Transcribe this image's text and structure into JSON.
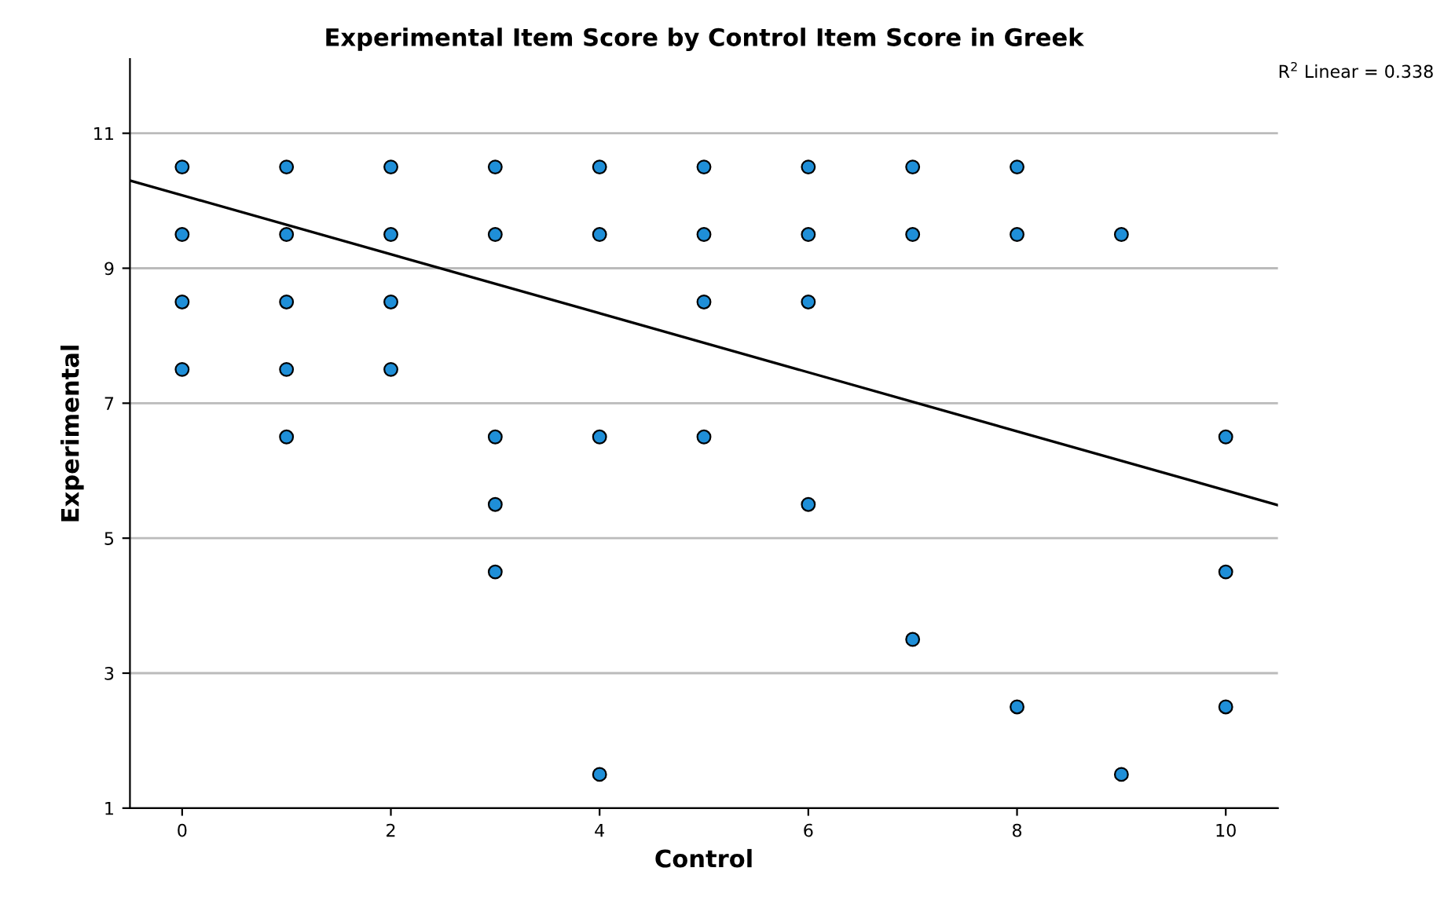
{
  "chart_data": {
    "type": "scatter",
    "title": "Experimental Item Score by Control Item Score in Greek",
    "xlabel": "Control",
    "ylabel": "Experimental",
    "annotations": [
      "R$^{2}$ Linear = 0.338"
    ],
    "xlim": [
      -0.5,
      10.5
    ],
    "xticks": [
      0,
      2,
      4,
      6,
      8,
      10
    ],
    "ylim": [
      1,
      12.1
    ],
    "yticks": [
      1,
      3,
      5,
      7,
      9,
      11
    ],
    "grid": "y",
    "series": [
      {
        "marker": "circle",
        "color": "#1f8fd8",
        "x": [
          0,
          0,
          0,
          0,
          1,
          1,
          1,
          1,
          1,
          2,
          2,
          2,
          2,
          3,
          3,
          3,
          3,
          3,
          4,
          4,
          4,
          4,
          5,
          5,
          5,
          5,
          6,
          6,
          6,
          6,
          7,
          7,
          7,
          8,
          8,
          8,
          9,
          9,
          10,
          10,
          10
        ],
        "values": [
          10.5,
          9.5,
          8.5,
          7.5,
          10.5,
          9.5,
          8.5,
          7.5,
          6.5,
          10.5,
          9.5,
          8.5,
          7.5,
          10.5,
          9.5,
          6.5,
          5.5,
          4.5,
          10.5,
          9.5,
          6.5,
          1.5,
          10.5,
          9.5,
          8.5,
          6.5,
          10.5,
          9.5,
          8.5,
          5.5,
          10.5,
          9.5,
          3.5,
          10.5,
          9.5,
          2.5,
          9.5,
          1.5,
          6.5,
          4.5,
          2.5
        ]
      },
      {
        "type": "line",
        "marker": "none",
        "color": "#000000",
        "x": [
          -0.5,
          10.5
        ],
        "values": [
          10.3,
          5.49
        ]
      }
    ]
  }
}
